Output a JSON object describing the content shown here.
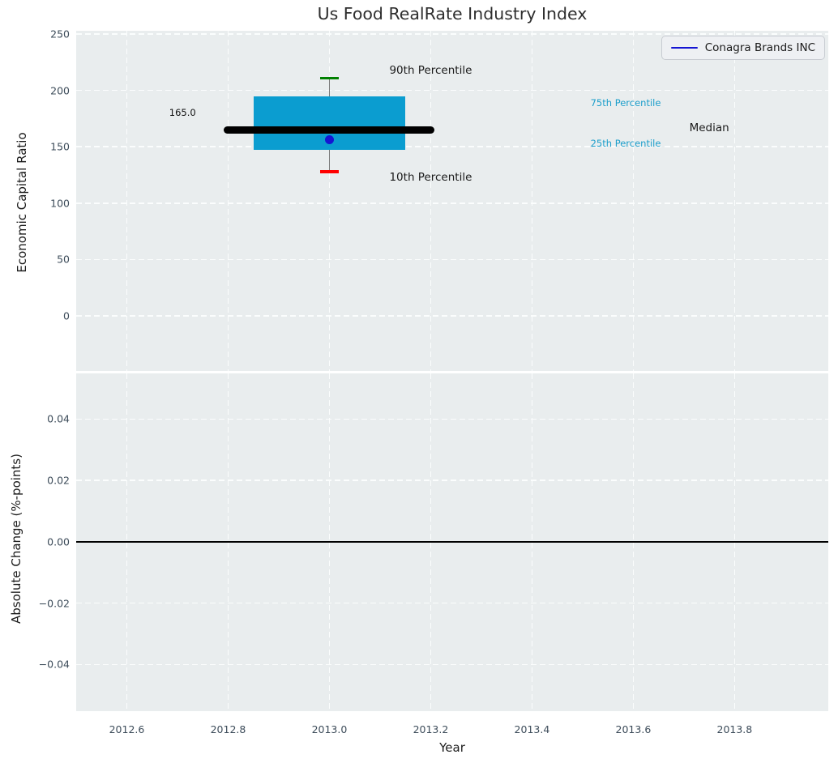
{
  "chart_data": [
    {
      "type": "boxplot",
      "title": "Us Food RealRate Industry Index",
      "xlabel": "Year",
      "ylabel": "Economic Capital Ratio",
      "xlim": [
        2012.5,
        2013.985
      ],
      "ylim": [
        -48.9,
        252.9
      ],
      "xticks": [
        2012.6,
        2012.8,
        2013.0,
        2013.2,
        2013.4,
        2013.6,
        2013.8
      ],
      "yticks": [
        250,
        200,
        150,
        100,
        50,
        0
      ],
      "grid": true,
      "legend": {
        "label": "Conagra Brands INC",
        "position": "upper right",
        "line_color": "#1515d3"
      },
      "box": {
        "x": 2013.0,
        "box_halfwidth": 0.15,
        "p90": 211,
        "p75": 195,
        "median": 165.0,
        "p25": 147,
        "p10": 128,
        "median_label": "165.0",
        "median_line_span": [
          2012.8,
          2013.2
        ],
        "colors": {
          "box": "#0b9dd0",
          "median_line": "#000000",
          "whisker": "#7a7a7a",
          "p90_cap": "#008000",
          "p10_cap": "#ff0000"
        }
      },
      "company_point": {
        "name": "Conagra Brands INC",
        "x": 2013.0,
        "y": 156,
        "color": "#1515d3"
      },
      "annotations": [
        {
          "text": "90th Percentile",
          "x": 2013.2,
          "y": 218,
          "style": "large-dark",
          "color": "#1a1a1a"
        },
        {
          "text": "10th Percentile",
          "x": 2013.2,
          "y": 123,
          "style": "large-dark",
          "color": "#1a1a1a"
        },
        {
          "text": "165.0",
          "x": 2012.71,
          "y": 180,
          "style": "small-dark",
          "color": "#101010"
        },
        {
          "text": "75th Percentile",
          "x": 2013.585,
          "y": 189,
          "style": "small-cyan",
          "color": "#1b9ecb"
        },
        {
          "text": "Median",
          "x": 2013.75,
          "y": 167,
          "style": "large-dark",
          "color": "#1a1a1a"
        },
        {
          "text": "25th Percentile",
          "x": 2013.585,
          "y": 153,
          "style": "small-cyan",
          "color": "#1b9ecb"
        }
      ]
    },
    {
      "type": "line",
      "xlabel": "Year",
      "ylabel": "Absolute Change (%-points)",
      "xlim": [
        2012.5,
        2013.985
      ],
      "ylim": [
        -0.0552,
        0.0549
      ],
      "xticks": [
        2012.6,
        2012.8,
        2013.0,
        2013.2,
        2013.4,
        2013.6,
        2013.8
      ],
      "yticks": [
        0.04,
        0.02,
        0.0,
        -0.02,
        -0.04
      ],
      "grid": true,
      "zero_line_y": 0.0,
      "zero_line_color": "#000000",
      "series": []
    }
  ]
}
